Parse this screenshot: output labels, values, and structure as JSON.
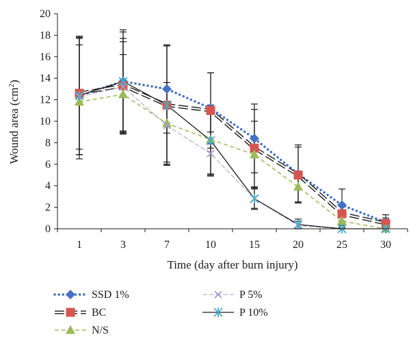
{
  "chart_data": {
    "type": "line",
    "categories": [
      "1",
      "3",
      "7",
      "10",
      "15",
      "20",
      "25",
      "30"
    ],
    "xlabel": "Time (day after burn injury)",
    "ylabel": "Wound area (cm",
    "ylabel_sup": "2",
    "ylabel_close": ")",
    "ylim": [
      0,
      20
    ],
    "yticks": [
      "0",
      "2",
      "4",
      "6",
      "8",
      "10",
      "12",
      "14",
      "16",
      "18",
      "20"
    ],
    "grid": false,
    "legend_position": "bottom",
    "series": [
      {
        "name": "SSD 1%",
        "values": [
          12.4,
          13.7,
          13.0,
          11.2,
          8.4,
          5.1,
          2.2,
          0.6
        ],
        "error": [
          5.5,
          4.6,
          4.1,
          3.3,
          3.2,
          2.7,
          1.5,
          0.7
        ],
        "color": "#4472c4",
        "marker": "diamond",
        "line": "dotted"
      },
      {
        "name": "BC",
        "values": [
          12.6,
          13.3,
          11.5,
          11.0,
          7.5,
          5.0,
          1.4,
          0.5
        ],
        "error": [
          5.2,
          4.4,
          5.5,
          3.5,
          3.6,
          2.6,
          0.9,
          0.5
        ],
        "color": "#d9534f",
        "marker": "square",
        "line": "doubledash"
      },
      {
        "name": "N/S",
        "values": [
          11.8,
          12.5,
          9.8,
          8.3,
          6.9,
          3.9,
          0.7,
          0.0
        ],
        "error": [
          5.3,
          3.7,
          3.8,
          3.2,
          3.1,
          1.4,
          0.4,
          0.1
        ],
        "color": "#9bbb59",
        "marker": "triangle",
        "line": "dashed"
      },
      {
        "name": "P 5%",
        "values": [
          12.3,
          13.2,
          9.6,
          7.0,
          2.8,
          0.3,
          0.0,
          0.0
        ],
        "error": [
          5.4,
          4.2,
          3.4,
          2.0,
          1.0,
          0.4,
          0.1,
          0.0
        ],
        "color": "#a89cc8",
        "marker": "x",
        "line": "dashedthin"
      },
      {
        "name": "P 10%",
        "values": [
          12.4,
          13.7,
          11.5,
          8.2,
          2.8,
          0.4,
          0.0,
          0.0
        ],
        "error": [
          5.5,
          4.8,
          5.6,
          3.3,
          0.9,
          0.5,
          0.1,
          0.0
        ],
        "color": "#1a1a1a",
        "marker": "asterisk",
        "line": "solid",
        "marker_color": "#4bacc6"
      }
    ]
  }
}
